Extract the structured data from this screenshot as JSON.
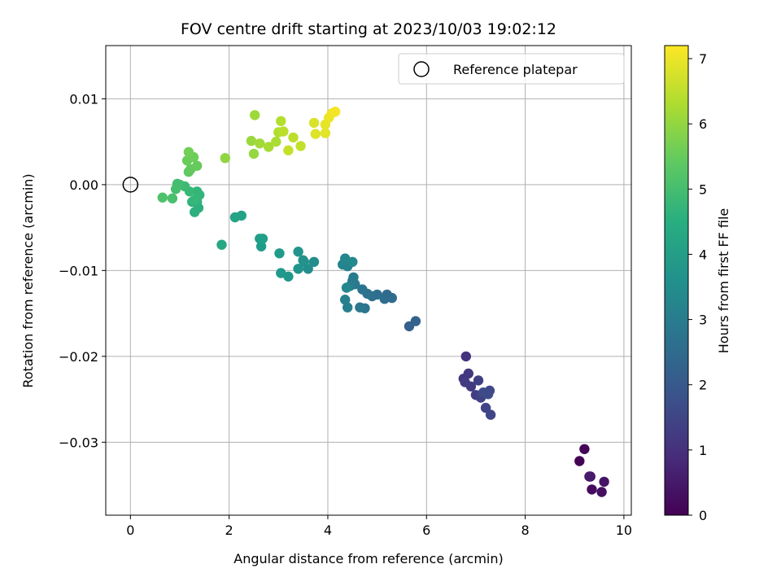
{
  "chart_data": {
    "type": "scatter",
    "title": "FOV centre drift starting at 2023/10/03 19:02:12",
    "xlabel": "Angular distance from reference (arcmin)",
    "ylabel": "Rotation from reference (arcmin)",
    "xlim": [
      -0.5,
      10.15
    ],
    "ylim": [
      -0.0385,
      0.0162
    ],
    "x_ticks": [
      0,
      2,
      4,
      6,
      8,
      10
    ],
    "x_tick_labels": [
      "0",
      "2",
      "4",
      "6",
      "8",
      "10"
    ],
    "y_ticks": [
      -0.03,
      -0.02,
      -0.01,
      0.0,
      0.01
    ],
    "y_tick_labels": [
      "−0.03",
      "−0.02",
      "−0.01",
      "0.00",
      "0.01"
    ],
    "grid": true,
    "legend": {
      "placement": "top-right",
      "entries": [
        "Reference platepar"
      ]
    },
    "colorbar": {
      "label": "Hours from first FF file",
      "colormap": "viridis",
      "range": [
        0,
        7.2
      ],
      "ticks": [
        0,
        1,
        2,
        3,
        4,
        5,
        6,
        7
      ],
      "tick_labels": [
        "0",
        "1",
        "2",
        "3",
        "4",
        "5",
        "6",
        "7"
      ]
    },
    "reference_point": {
      "x": 0,
      "y": 0
    },
    "points": [
      [
        9.1,
        -0.0322,
        0.02
      ],
      [
        9.2,
        -0.0308,
        0.08
      ],
      [
        9.32,
        -0.034,
        0.14
      ],
      [
        9.35,
        -0.0355,
        0.22
      ],
      [
        9.55,
        -0.0358,
        0.3
      ],
      [
        9.6,
        -0.0346,
        0.38
      ],
      [
        9.3,
        -0.034,
        0.55
      ],
      [
        6.8,
        -0.02,
        1.05
      ],
      [
        6.75,
        -0.0226,
        1.1
      ],
      [
        6.85,
        -0.022,
        1.15
      ],
      [
        6.9,
        -0.0235,
        1.2
      ],
      [
        6.78,
        -0.023,
        1.25
      ],
      [
        7.0,
        -0.0245,
        1.3
      ],
      [
        7.05,
        -0.0228,
        1.35
      ],
      [
        7.1,
        -0.0248,
        1.4
      ],
      [
        7.2,
        -0.026,
        1.45
      ],
      [
        7.3,
        -0.0268,
        1.5
      ],
      [
        7.28,
        -0.024,
        1.55
      ],
      [
        7.15,
        -0.0242,
        1.6
      ],
      [
        7.25,
        -0.0244,
        1.65
      ],
      [
        5.65,
        -0.0165,
        2.2
      ],
      [
        5.78,
        -0.0159,
        2.25
      ],
      [
        5.3,
        -0.0132,
        2.45
      ],
      [
        5.2,
        -0.0128,
        2.5
      ],
      [
        5.15,
        -0.0133,
        2.55
      ],
      [
        5.0,
        -0.0128,
        2.6
      ],
      [
        4.9,
        -0.013,
        2.65
      ],
      [
        4.8,
        -0.0127,
        2.7
      ],
      [
        4.7,
        -0.0122,
        2.75
      ],
      [
        4.75,
        -0.0144,
        2.8
      ],
      [
        4.65,
        -0.0143,
        2.85
      ],
      [
        4.5,
        -0.0112,
        2.9
      ],
      [
        4.55,
        -0.0116,
        2.95
      ],
      [
        4.52,
        -0.0108,
        3.0
      ],
      [
        4.45,
        -0.0118,
        3.05
      ],
      [
        4.4,
        -0.0143,
        3.1
      ],
      [
        4.35,
        -0.0134,
        3.15
      ],
      [
        4.4,
        -0.0095,
        3.2
      ],
      [
        4.3,
        -0.0093,
        3.25
      ],
      [
        4.35,
        -0.0086,
        3.3
      ],
      [
        4.38,
        -0.012,
        3.35
      ],
      [
        4.5,
        -0.009,
        3.4
      ],
      [
        3.72,
        -0.009,
        3.5
      ],
      [
        3.6,
        -0.0098,
        3.55
      ],
      [
        3.52,
        -0.009,
        3.6
      ],
      [
        3.5,
        -0.0088,
        3.65
      ],
      [
        3.4,
        -0.0098,
        3.7
      ],
      [
        3.4,
        -0.0078,
        3.75
      ],
      [
        3.2,
        -0.0107,
        3.8
      ],
      [
        3.05,
        -0.0103,
        3.85
      ],
      [
        3.02,
        -0.008,
        3.9
      ],
      [
        2.65,
        -0.0072,
        3.95
      ],
      [
        2.62,
        -0.0063,
        4.0
      ],
      [
        2.68,
        -0.0063,
        4.05
      ],
      [
        2.25,
        -0.0036,
        4.15
      ],
      [
        2.12,
        -0.0038,
        4.2
      ],
      [
        1.85,
        -0.007,
        4.3
      ],
      [
        1.38,
        -0.0027,
        4.5
      ],
      [
        1.3,
        -0.0032,
        4.55
      ],
      [
        1.35,
        -0.002,
        4.6
      ],
      [
        1.25,
        -0.002,
        4.65
      ],
      [
        1.4,
        -0.0012,
        4.7
      ],
      [
        1.35,
        -0.0008,
        4.75
      ],
      [
        1.3,
        -0.0018,
        4.8
      ],
      [
        1.2,
        -0.0008,
        4.85
      ],
      [
        1.1,
        -0.0002,
        4.9
      ],
      [
        1.0,
        0.0,
        4.95
      ],
      [
        0.95,
        0.0001,
        5.0
      ],
      [
        0.92,
        -0.0005,
        5.05
      ],
      [
        0.85,
        -0.0016,
        5.1
      ],
      [
        0.65,
        -0.0015,
        5.15
      ],
      [
        1.18,
        0.0015,
        5.4
      ],
      [
        1.22,
        0.0018,
        5.45
      ],
      [
        1.35,
        0.0022,
        5.5
      ],
      [
        1.15,
        0.0028,
        5.55
      ],
      [
        1.28,
        0.0032,
        5.6
      ],
      [
        1.18,
        0.0038,
        5.65
      ],
      [
        1.92,
        0.0031,
        6.0
      ],
      [
        2.5,
        0.0036,
        6.05
      ],
      [
        2.45,
        0.0051,
        6.1
      ],
      [
        2.52,
        0.0081,
        6.15
      ],
      [
        2.62,
        0.0048,
        6.2
      ],
      [
        2.8,
        0.0044,
        6.25
      ],
      [
        2.95,
        0.005,
        6.3
      ],
      [
        3.0,
        0.0061,
        6.35
      ],
      [
        3.05,
        0.0074,
        6.4
      ],
      [
        3.1,
        0.0062,
        6.45
      ],
      [
        3.3,
        0.0055,
        6.5
      ],
      [
        3.45,
        0.0045,
        6.55
      ],
      [
        3.2,
        0.004,
        6.6
      ],
      [
        3.72,
        0.0072,
        6.8
      ],
      [
        3.75,
        0.0059,
        6.85
      ],
      [
        3.95,
        0.006,
        6.9
      ],
      [
        3.95,
        0.007,
        6.95
      ],
      [
        4.02,
        0.0078,
        7.0
      ],
      [
        4.08,
        0.0083,
        7.05
      ],
      [
        4.15,
        0.0085,
        7.1
      ]
    ]
  }
}
